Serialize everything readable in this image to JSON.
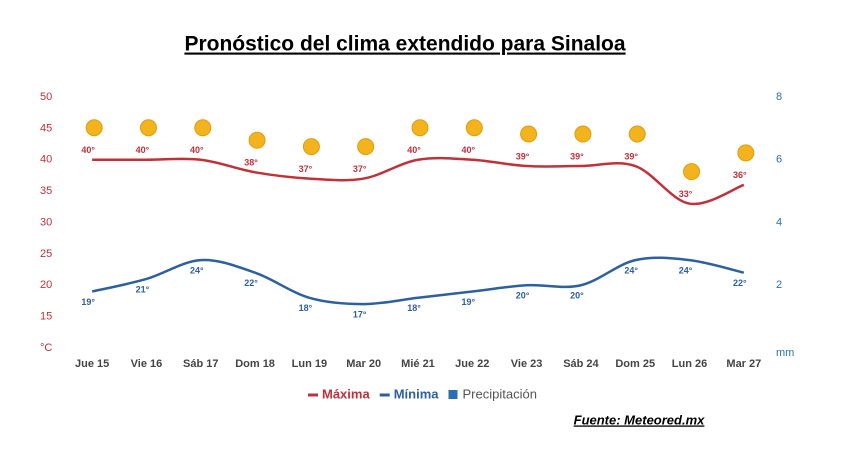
{
  "chart_data": {
    "type": "line",
    "title": "Pronóstico del clima extendido para Sinaloa",
    "source": "Fuente: Meteored.mx",
    "categories": [
      "Jue 15",
      "Vie 16",
      "Sáb 17",
      "Dom 18",
      "Lun 19",
      "Mar 20",
      "Mié 21",
      "Jue 22",
      "Vie 23",
      "Sáb 24",
      "Dom 25",
      "Lun 26",
      "Mar 27"
    ],
    "series": [
      {
        "name": "Máxima",
        "color": "#c0313a",
        "values": [
          40,
          40,
          40,
          38,
          37,
          37,
          40,
          40,
          39,
          39,
          39,
          33,
          36
        ],
        "value_labels": [
          "40°",
          "40°",
          "40°",
          "38°",
          "37°",
          "37°",
          "40°",
          "40°",
          "39°",
          "39°",
          "39°",
          "33°",
          "36°"
        ]
      },
      {
        "name": "Mínima",
        "color": "#2e5f9e",
        "values": [
          19,
          21,
          24,
          22,
          18,
          17,
          18,
          19,
          20,
          20,
          24,
          24,
          22
        ],
        "value_labels": [
          "19°",
          "21°",
          "24°",
          "22°",
          "18°",
          "17°",
          "18°",
          "19°",
          "20°",
          "20°",
          "24°",
          "24°",
          "22°"
        ]
      },
      {
        "name": "Precipitación",
        "color": "#2a6fb0",
        "axis": "y2",
        "values": [
          null,
          null,
          null,
          null,
          null,
          null,
          null,
          null,
          null,
          null,
          null,
          null,
          null
        ]
      }
    ],
    "ylim": [
      10,
      50
    ],
    "yticks": [
      {
        "value": 10,
        "label": "°C"
      },
      15,
      20,
      25,
      30,
      35,
      40,
      45,
      50
    ],
    "y2lim": [
      0,
      8
    ],
    "y2ticks": [
      {
        "value": 0,
        "label": "mm"
      },
      2,
      4,
      6,
      8
    ],
    "grid": false
  }
}
